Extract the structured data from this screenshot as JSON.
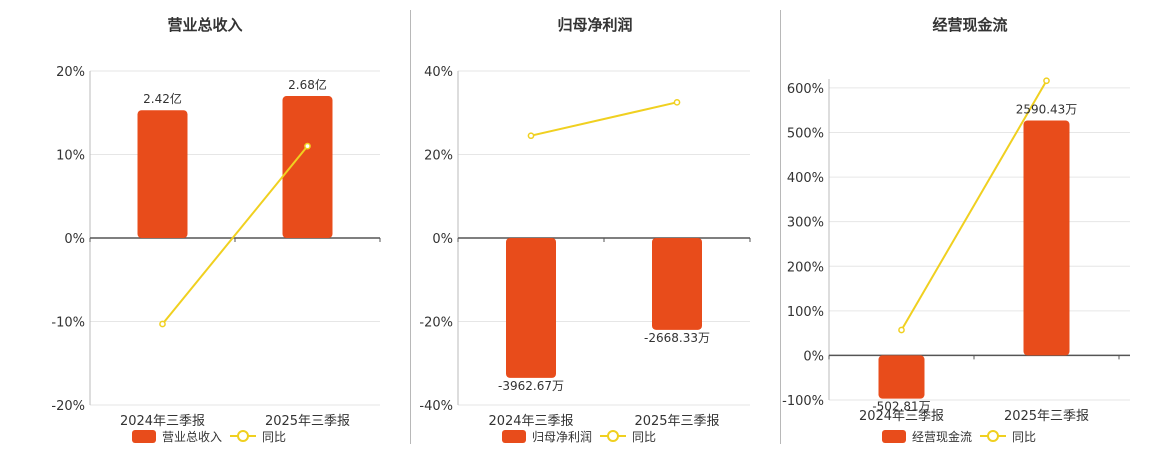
{
  "chart_data": [
    {
      "type": "bar",
      "title": "营业总收入",
      "categories": [
        "2024年三季报",
        "2025年三季报"
      ],
      "series": [
        {
          "name": "营业总收入",
          "type": "bar",
          "values": [
            15.3,
            17.0
          ],
          "labels": [
            "2.42亿",
            "2.68亿"
          ]
        },
        {
          "name": "同比",
          "type": "line",
          "values": [
            -10.3,
            11.0
          ]
        }
      ],
      "ylim": [
        -20,
        20
      ],
      "yticks": [
        20,
        10,
        0,
        -10,
        -20
      ],
      "tick_suffix": "%",
      "grid": true,
      "legend": "bottom"
    },
    {
      "type": "bar",
      "title": "归母净利润",
      "categories": [
        "2024年三季报",
        "2025年三季报"
      ],
      "series": [
        {
          "name": "归母净利润",
          "type": "bar",
          "values": [
            -33.5,
            -22.0
          ],
          "labels": [
            "-3962.67万",
            "-2668.33万"
          ]
        },
        {
          "name": "同比",
          "type": "line",
          "values": [
            24.5,
            32.5
          ]
        }
      ],
      "ylim": [
        -40,
        40
      ],
      "yticks": [
        40,
        20,
        0,
        -20,
        -40
      ],
      "tick_suffix": "%",
      "grid": true,
      "legend": "bottom"
    },
    {
      "type": "bar",
      "title": "经营现金流",
      "categories": [
        "2024年三季报",
        "2025年三季报"
      ],
      "series": [
        {
          "name": "经营现金流",
          "type": "bar",
          "values": [
            -97,
            527
          ],
          "labels": [
            "-502.81万",
            "2590.43万"
          ]
        },
        {
          "name": "同比",
          "type": "line",
          "values": [
            57,
            616
          ]
        }
      ],
      "ylim": [
        -100,
        620
      ],
      "yticks": [
        600,
        500,
        400,
        300,
        200,
        100,
        0,
        -100
      ],
      "tick_suffix": "%",
      "grid": true,
      "legend": "bottom"
    }
  ],
  "colors": {
    "bar": "#e84c1b",
    "line": "#f0d020",
    "axis": "#555555",
    "grid": "#e6e6e6"
  }
}
